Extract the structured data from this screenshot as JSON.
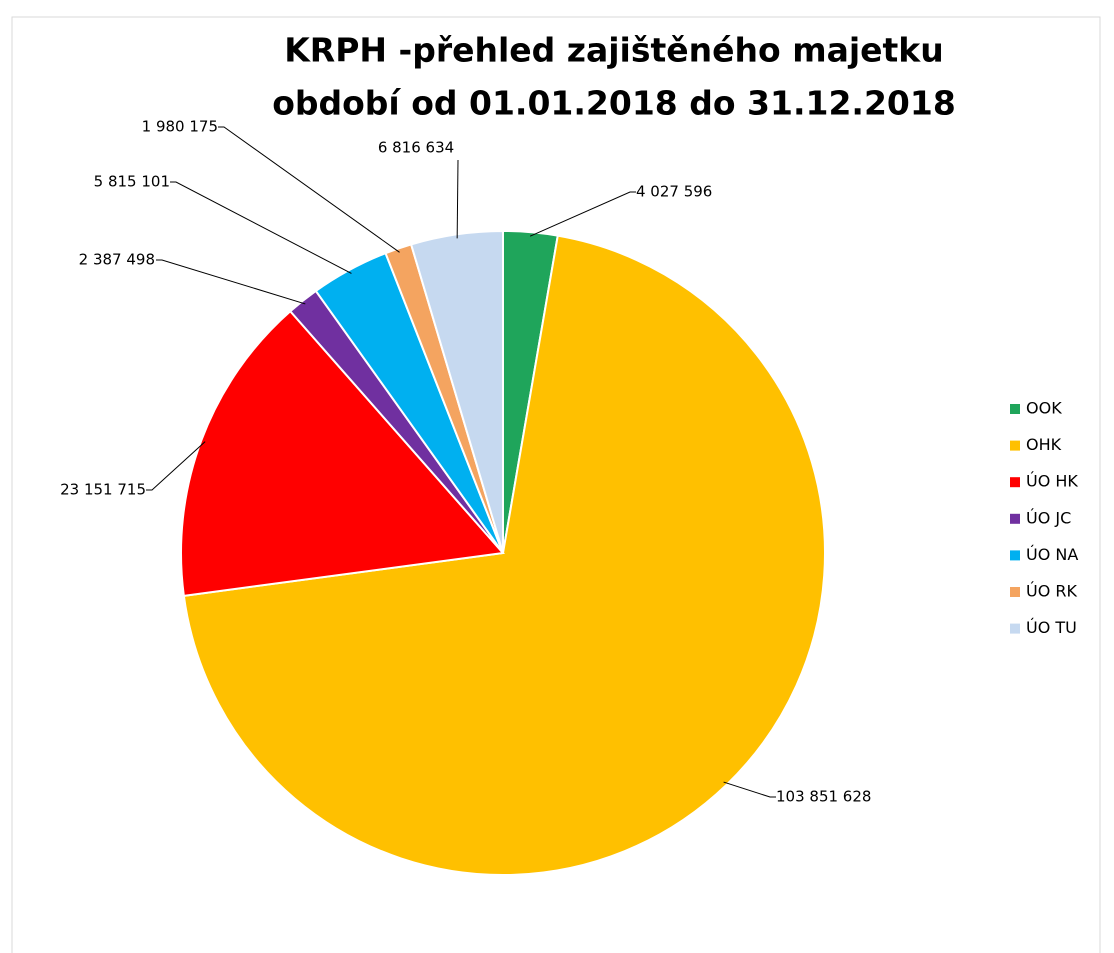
{
  "chart_data": {
    "type": "pie",
    "title": "KRPH -přehled zajištěného majetku",
    "subtitle": "období od 01.01.2018 do 31.12.2018",
    "categories": [
      "OOK",
      "OHK",
      "ÚO HK",
      "ÚO JC",
      "ÚO NA",
      "ÚO RK",
      "ÚO TU"
    ],
    "values": [
      4027596,
      103851628,
      23151715,
      2387498,
      5815101,
      1980175,
      6816634
    ],
    "value_labels": [
      "4 027 596",
      "103 851 628",
      "23 151 715",
      "2 387 498",
      "5 815 101",
      "1 980 175",
      "6 816 634"
    ],
    "colors": [
      "#1fa55b",
      "#ffc000",
      "#ff0000",
      "#7030a0",
      "#00b0f0",
      "#f4a460",
      "#c6d9f0"
    ],
    "legend": "right"
  }
}
